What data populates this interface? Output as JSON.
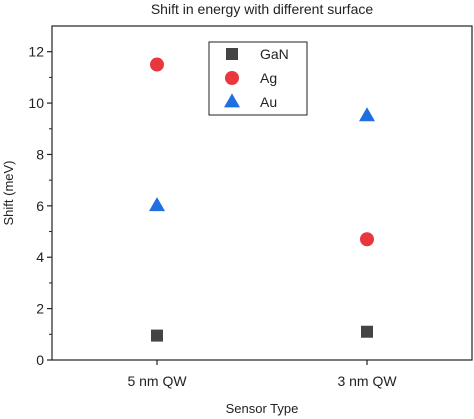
{
  "chart_data": {
    "type": "scatter",
    "title": "Shift in energy with different surface",
    "xlabel": "Sensor Type",
    "ylabel": "Shift (meV)",
    "categories": [
      "5 nm QW",
      "3 nm QW"
    ],
    "ylim": [
      0,
      13
    ],
    "yticks": [
      0,
      2,
      4,
      6,
      8,
      10,
      12
    ],
    "grid": false,
    "legend_position": "top-center",
    "series": [
      {
        "name": "GaN",
        "marker": "square",
        "color": "#444444",
        "values": [
          0.95,
          1.1
        ]
      },
      {
        "name": "Ag",
        "marker": "circle",
        "color": "#e8383d",
        "values": [
          11.5,
          4.7
        ]
      },
      {
        "name": "Au",
        "marker": "triangle",
        "color": "#1f6fe0",
        "values": [
          6.0,
          9.5
        ]
      }
    ]
  }
}
